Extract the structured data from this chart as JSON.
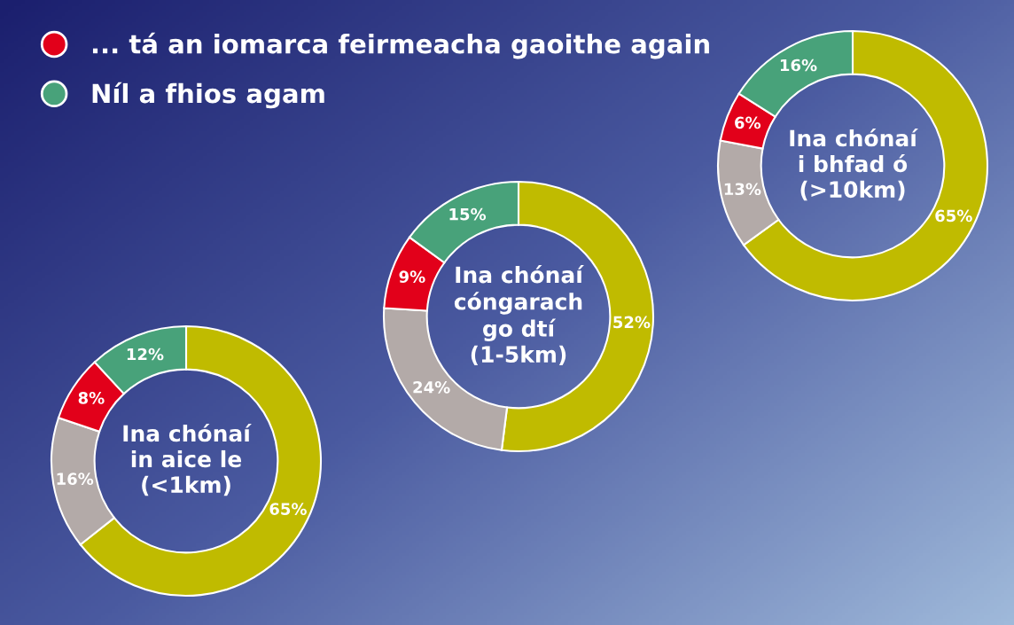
{
  "chart_data": [
    {
      "type": "donut",
      "title": "Ina chónaí in aice le (<1km)",
      "categories": [
        null,
        null,
        "... tá an iomarca feirmeacha gaoithe again",
        "Níl a fhios agam"
      ],
      "values": [
        65,
        16,
        8,
        12
      ],
      "colors": [
        "#c0bb00",
        "#b3aaa8",
        "#e2001a",
        "#48a27a"
      ],
      "value_labels": [
        "65%",
        "16%",
        "8%",
        "12%"
      ],
      "legend": "top right"
    },
    {
      "type": "donut",
      "title": "Ina chónaí cóngarach go dtí (1-5km)",
      "categories": [
        null,
        null,
        null,
        null
      ],
      "values": [
        52,
        24,
        9,
        15
      ],
      "colors": [
        "#c0bb00",
        "#b3aaa8",
        "#e2001a",
        "#48a27a"
      ],
      "value_labels": [
        "52%",
        "24%",
        "9%",
        "15%"
      ]
    },
    {
      "type": "donut",
      "title": "Ina chónaí i bhfad ó (>10km)",
      "categories": [
        null,
        null,
        null,
        null
      ],
      "values": [
        65,
        13,
        6,
        16
      ],
      "colors": [
        "#c0bb00",
        "#b3aaa8",
        "#e2001a",
        "#48a27a"
      ],
      "value_labels": [
        "65%",
        "13%",
        "6%",
        "16%"
      ]
    }
  ]
}
